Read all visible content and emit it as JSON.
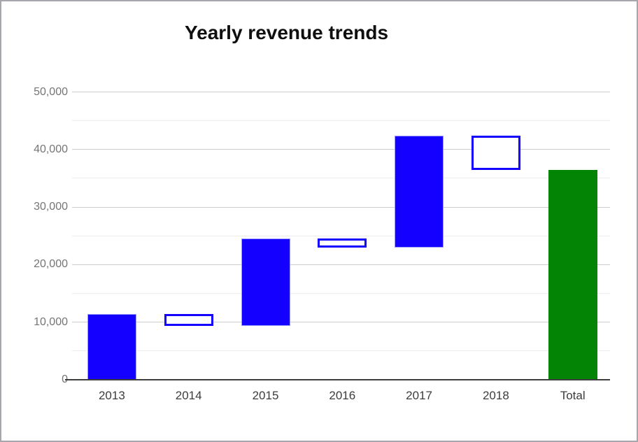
{
  "title": "Yearly revenue trends",
  "chart_data": {
    "type": "bar",
    "subtype": "waterfall",
    "title": "Yearly revenue trends",
    "xlabel": "",
    "ylabel": "",
    "legend": "none",
    "grid": true,
    "ylim": [
      0,
      50000
    ],
    "y_major_step": 10000,
    "y_minor_step": 5000,
    "y_tick_labels": [
      "0",
      "10,000",
      "20,000",
      "30,000",
      "40,000",
      "50,000"
    ],
    "categories": [
      "2013",
      "2014",
      "2015",
      "2016",
      "2017",
      "2018",
      "Total"
    ],
    "bars": [
      {
        "label": "2013",
        "start": 0,
        "end": 11400,
        "change": 11400,
        "kind": "rise"
      },
      {
        "label": "2014",
        "start": 11400,
        "end": 9300,
        "change": -2100,
        "kind": "fall"
      },
      {
        "label": "2015",
        "start": 9300,
        "end": 24600,
        "change": 15300,
        "kind": "rise"
      },
      {
        "label": "2016",
        "start": 24600,
        "end": 23000,
        "change": -1600,
        "kind": "fall"
      },
      {
        "label": "2017",
        "start": 23000,
        "end": 42400,
        "change": 19400,
        "kind": "rise"
      },
      {
        "label": "2018",
        "start": 42400,
        "end": 36500,
        "change": -5900,
        "kind": "fall"
      },
      {
        "label": "Total",
        "start": 0,
        "end": 36500,
        "change": 36500,
        "kind": "total"
      }
    ],
    "colors": {
      "rise_fill": "#1300ff",
      "rise_halo": "#9b9bff",
      "fall_fill": "#ffffff",
      "fall_border": "#1300ff",
      "total_fill": "#048404",
      "major_grid": "#cccccc",
      "minor_grid": "#ececec",
      "axis_line": "#3d3d3d",
      "y_label": "#757575",
      "x_label": "#3c3c3c",
      "title": "#0f0f0f",
      "frame_border": "#a6a6ad",
      "background": "#ffffff"
    }
  }
}
